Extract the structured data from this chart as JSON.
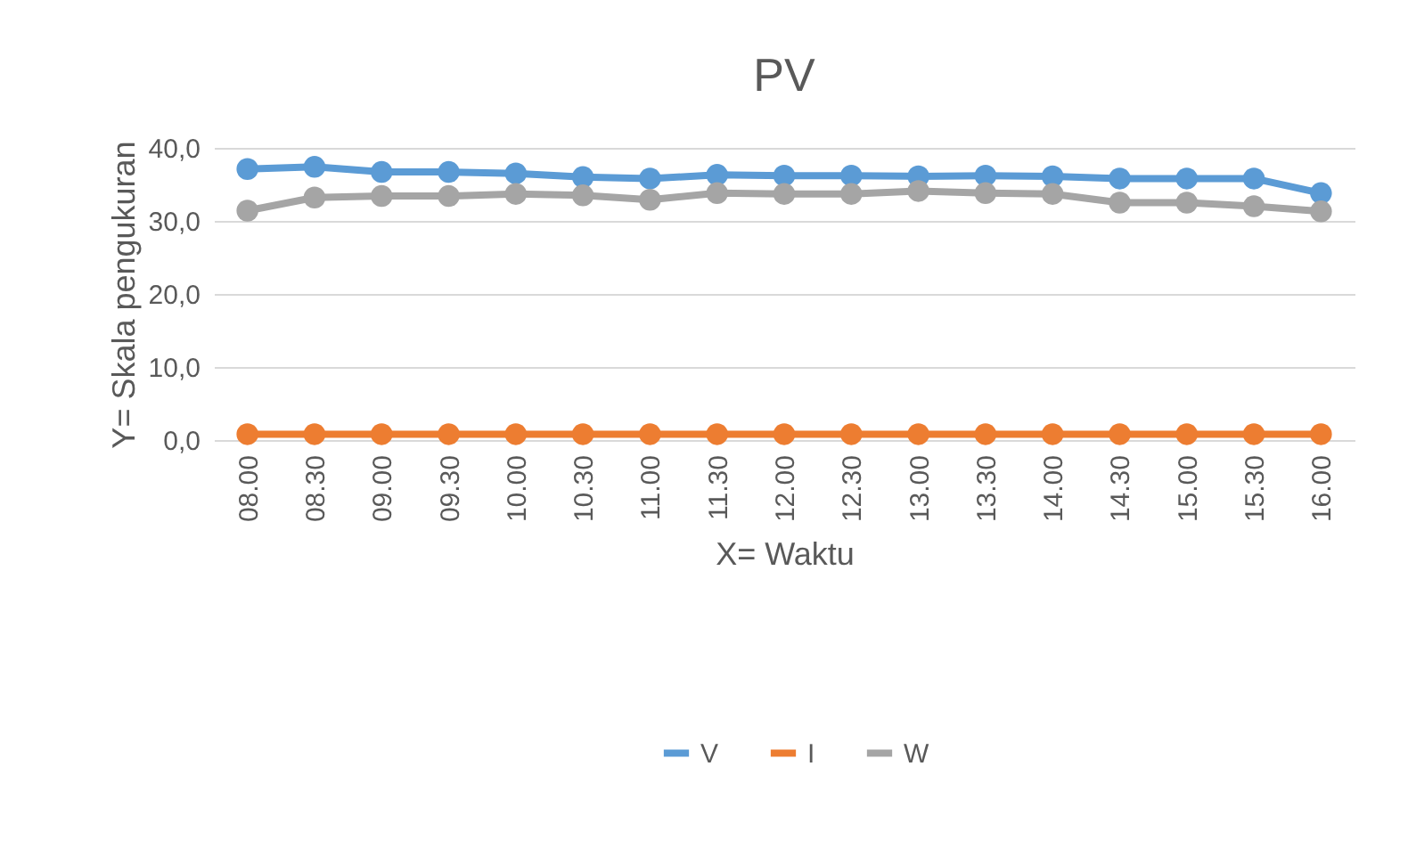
{
  "chart_data": {
    "type": "line",
    "title": "PV",
    "xlabel": "X= Waktu",
    "ylabel": "Y= Skala pengukuran",
    "categories": [
      "08.00",
      "08.30",
      "09.00",
      "09.30",
      "10.00",
      "10.30",
      "11.00",
      "11.30",
      "12.00",
      "12.30",
      "13.00",
      "13.30",
      "14.00",
      "14.30",
      "15.00",
      "15.30",
      "16.00"
    ],
    "series": [
      {
        "name": "V",
        "color": "#5b9bd5",
        "values": [
          37.1,
          37.4,
          36.7,
          36.7,
          36.5,
          36.0,
          35.8,
          36.3,
          36.2,
          36.2,
          36.1,
          36.2,
          36.1,
          35.8,
          35.8,
          35.8,
          33.8
        ]
      },
      {
        "name": "I",
        "color": "#ed7d31",
        "values": [
          0.8,
          0.8,
          0.8,
          0.8,
          0.8,
          0.8,
          0.8,
          0.8,
          0.8,
          0.8,
          0.8,
          0.8,
          0.8,
          0.8,
          0.8,
          0.8,
          0.8
        ]
      },
      {
        "name": "W",
        "color": "#a5a5a5",
        "values": [
          31.4,
          33.2,
          33.4,
          33.4,
          33.7,
          33.5,
          32.9,
          33.8,
          33.7,
          33.7,
          34.1,
          33.8,
          33.7,
          32.5,
          32.5,
          32.0,
          31.3
        ]
      }
    ],
    "ylim": [
      0,
      40
    ],
    "yticks": [
      {
        "value": 0,
        "label": "0,0"
      },
      {
        "value": 10,
        "label": "10,0"
      },
      {
        "value": 20,
        "label": "20,0"
      },
      {
        "value": 30,
        "label": "30,0"
      },
      {
        "value": 40,
        "label": "40,0"
      }
    ],
    "grid": "y",
    "legend": "bottom",
    "marker": "circle",
    "line_style": "solid"
  }
}
